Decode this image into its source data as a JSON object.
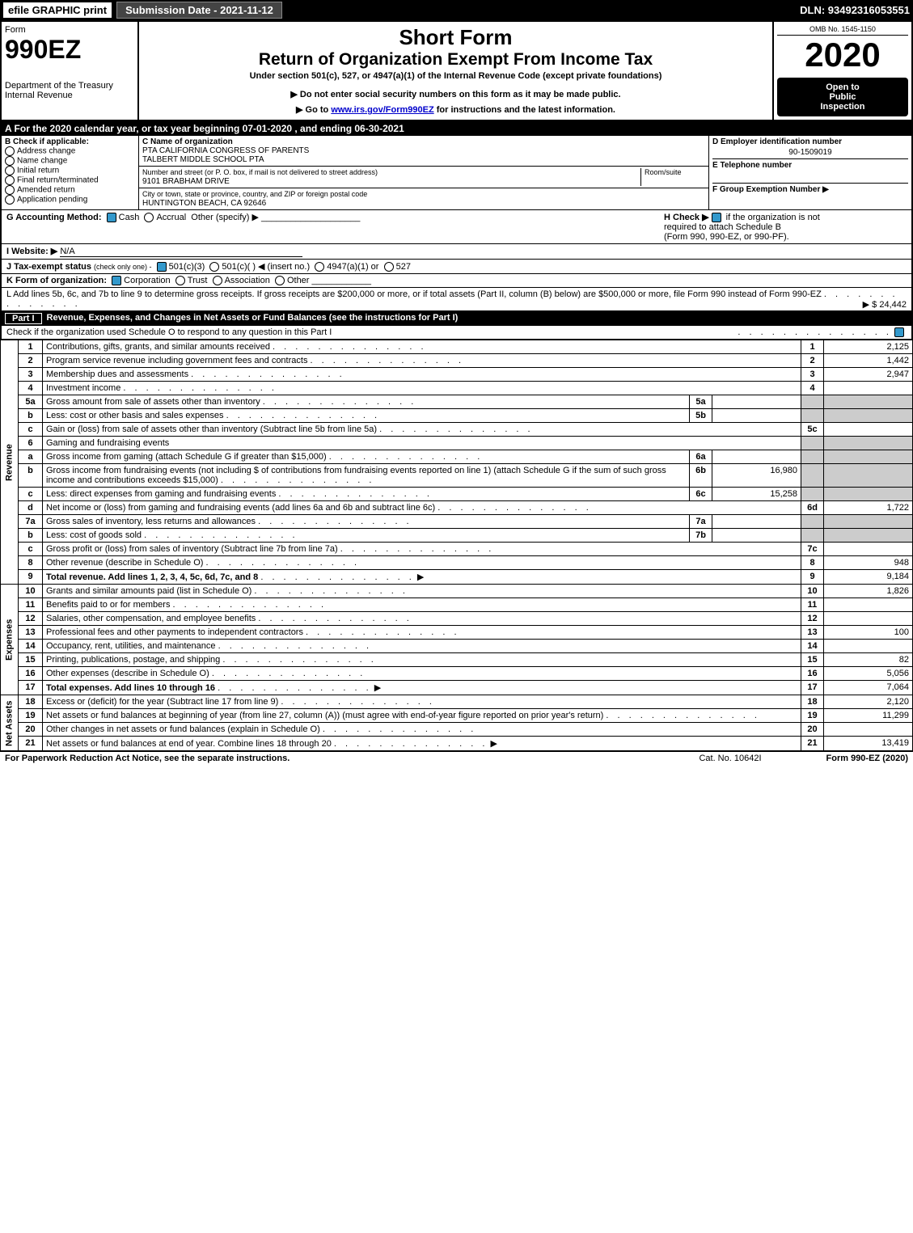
{
  "topbar": {
    "efile": "efile GRAPHIC print",
    "subdate": "Submission Date - 2021-11-12",
    "dln": "DLN: 93492316053551"
  },
  "header": {
    "form_label": "Form",
    "form_number": "990EZ",
    "dept": "Department of the Treasury",
    "irs": "Internal Revenue",
    "short_form": "Short Form",
    "title": "Return of Organization Exempt From Income Tax",
    "subtitle": "Under section 501(c), 527, or 4947(a)(1) of the Internal Revenue Code (except private foundations)",
    "note1": "▶ Do not enter social security numbers on this form as it may be made public.",
    "note2_pre": "▶ Go to ",
    "note2_link": "www.irs.gov/Form990EZ",
    "note2_post": " for instructions and the latest information.",
    "omb": "OMB No. 1545-1150",
    "year": "2020",
    "inspect1": "Open to",
    "inspect2": "Public",
    "inspect3": "Inspection"
  },
  "period": "A For the 2020 calendar year, or tax year beginning 07-01-2020 , and ending 06-30-2021",
  "boxB": {
    "title": "B  Check if applicable:",
    "opts": [
      "Address change",
      "Name change",
      "Initial return",
      "Final return/terminated",
      "Amended return",
      "Application pending"
    ]
  },
  "boxC": {
    "label": "C Name of organization",
    "name1": "PTA CALIFORNIA CONGRESS OF PARENTS",
    "name2": "TALBERT MIDDLE SCHOOL PTA",
    "addr_label": "Number and street (or P. O. box, if mail is not delivered to street address)",
    "room_label": "Room/suite",
    "addr": "9101 BRABHAM DRIVE",
    "city_label": "City or town, state or province, country, and ZIP or foreign postal code",
    "city": "HUNTINGTON BEACH, CA  92646"
  },
  "boxD": {
    "label": "D Employer identification number",
    "value": "90-1509019"
  },
  "boxE": {
    "label": "E Telephone number"
  },
  "boxF": {
    "label": "F Group Exemption Number  ▶"
  },
  "lineG": {
    "label": "G Accounting Method:",
    "cash": "Cash",
    "accrual": "Accrual",
    "other": "Other (specify) ▶"
  },
  "lineH": {
    "label": "H  Check ▶",
    "text1": "if the organization is not",
    "text2": "required to attach Schedule B",
    "text3": "(Form 990, 990-EZ, or 990-PF)."
  },
  "lineI": {
    "label": "I Website: ▶",
    "value": "N/A"
  },
  "lineJ": {
    "label": "J Tax-exempt status",
    "sub": "(check only one) -",
    "opt1": "501(c)(3)",
    "opt2": "501(c)(  ) ◀ (insert no.)",
    "opt3": "4947(a)(1) or",
    "opt4": "527"
  },
  "lineK": {
    "label": "K Form of organization:",
    "opts": [
      "Corporation",
      "Trust",
      "Association",
      "Other"
    ]
  },
  "lineL": {
    "text": "L Add lines 5b, 6c, and 7b to line 9 to determine gross receipts. If gross receipts are $200,000 or more, or if total assets (Part II, column (B) below) are $500,000 or more, file Form 990 instead of Form 990-EZ",
    "arrow": "▶ $ 24,442"
  },
  "part1": {
    "tab": "Part I",
    "title": "Revenue, Expenses, and Changes in Net Assets or Fund Balances (see the instructions for Part I)",
    "check_text": "Check if the organization used Schedule O to respond to any question in this Part I"
  },
  "sections": {
    "revenue": "Revenue",
    "expenses": "Expenses",
    "netassets": "Net Assets"
  },
  "rows": [
    {
      "n": "1",
      "desc": "Contributions, gifts, grants, and similar amounts received",
      "rn": "1",
      "val": "2,125"
    },
    {
      "n": "2",
      "desc": "Program service revenue including government fees and contracts",
      "rn": "2",
      "val": "1,442"
    },
    {
      "n": "3",
      "desc": "Membership dues and assessments",
      "rn": "3",
      "val": "2,947"
    },
    {
      "n": "4",
      "desc": "Investment income",
      "rn": "4",
      "val": ""
    },
    {
      "n": "5a",
      "desc": "Gross amount from sale of assets other than inventory",
      "sub": "5a",
      "subval": ""
    },
    {
      "n": "b",
      "desc": "Less: cost or other basis and sales expenses",
      "sub": "5b",
      "subval": ""
    },
    {
      "n": "c",
      "desc": "Gain or (loss) from sale of assets other than inventory (Subtract line 5b from line 5a)",
      "rn": "5c",
      "val": ""
    },
    {
      "n": "6",
      "desc": "Gaming and fundraising events"
    },
    {
      "n": "a",
      "desc": "Gross income from gaming (attach Schedule G if greater than $15,000)",
      "sub": "6a",
      "subval": ""
    },
    {
      "n": "b",
      "desc": "Gross income from fundraising events (not including $                         of contributions from fundraising events reported on line 1) (attach Schedule G if the sum of such gross income and contributions exceeds $15,000)",
      "sub": "6b",
      "subval": "16,980"
    },
    {
      "n": "c",
      "desc": "Less: direct expenses from gaming and fundraising events",
      "sub": "6c",
      "subval": "15,258"
    },
    {
      "n": "d",
      "desc": "Net income or (loss) from gaming and fundraising events (add lines 6a and 6b and subtract line 6c)",
      "rn": "6d",
      "val": "1,722"
    },
    {
      "n": "7a",
      "desc": "Gross sales of inventory, less returns and allowances",
      "sub": "7a",
      "subval": ""
    },
    {
      "n": "b",
      "desc": "Less: cost of goods sold",
      "sub": "7b",
      "subval": ""
    },
    {
      "n": "c",
      "desc": "Gross profit or (loss) from sales of inventory (Subtract line 7b from line 7a)",
      "rn": "7c",
      "val": ""
    },
    {
      "n": "8",
      "desc": "Other revenue (describe in Schedule O)",
      "rn": "8",
      "val": "948"
    },
    {
      "n": "9",
      "desc": "Total revenue. Add lines 1, 2, 3, 4, 5c, 6d, 7c, and 8",
      "rn": "9",
      "val": "9,184",
      "bold": true,
      "arrow": true
    }
  ],
  "exp_rows": [
    {
      "n": "10",
      "desc": "Grants and similar amounts paid (list in Schedule O)",
      "rn": "10",
      "val": "1,826"
    },
    {
      "n": "11",
      "desc": "Benefits paid to or for members",
      "rn": "11",
      "val": ""
    },
    {
      "n": "12",
      "desc": "Salaries, other compensation, and employee benefits",
      "rn": "12",
      "val": ""
    },
    {
      "n": "13",
      "desc": "Professional fees and other payments to independent contractors",
      "rn": "13",
      "val": "100"
    },
    {
      "n": "14",
      "desc": "Occupancy, rent, utilities, and maintenance",
      "rn": "14",
      "val": ""
    },
    {
      "n": "15",
      "desc": "Printing, publications, postage, and shipping",
      "rn": "15",
      "val": "82"
    },
    {
      "n": "16",
      "desc": "Other expenses (describe in Schedule O)",
      "rn": "16",
      "val": "5,056"
    },
    {
      "n": "17",
      "desc": "Total expenses. Add lines 10 through 16",
      "rn": "17",
      "val": "7,064",
      "bold": true,
      "arrow": true
    }
  ],
  "net_rows": [
    {
      "n": "18",
      "desc": "Excess or (deficit) for the year (Subtract line 17 from line 9)",
      "rn": "18",
      "val": "2,120"
    },
    {
      "n": "19",
      "desc": "Net assets or fund balances at beginning of year (from line 27, column (A)) (must agree with end-of-year figure reported on prior year's return)",
      "rn": "19",
      "val": "11,299"
    },
    {
      "n": "20",
      "desc": "Other changes in net assets or fund balances (explain in Schedule O)",
      "rn": "20",
      "val": ""
    },
    {
      "n": "21",
      "desc": "Net assets or fund balances at end of year. Combine lines 18 through 20",
      "rn": "21",
      "val": "13,419",
      "arrow": true
    }
  ],
  "footer": {
    "left": "For Paperwork Reduction Act Notice, see the separate instructions.",
    "cat": "Cat. No. 10642I",
    "right": "Form 990-EZ (2020)"
  }
}
